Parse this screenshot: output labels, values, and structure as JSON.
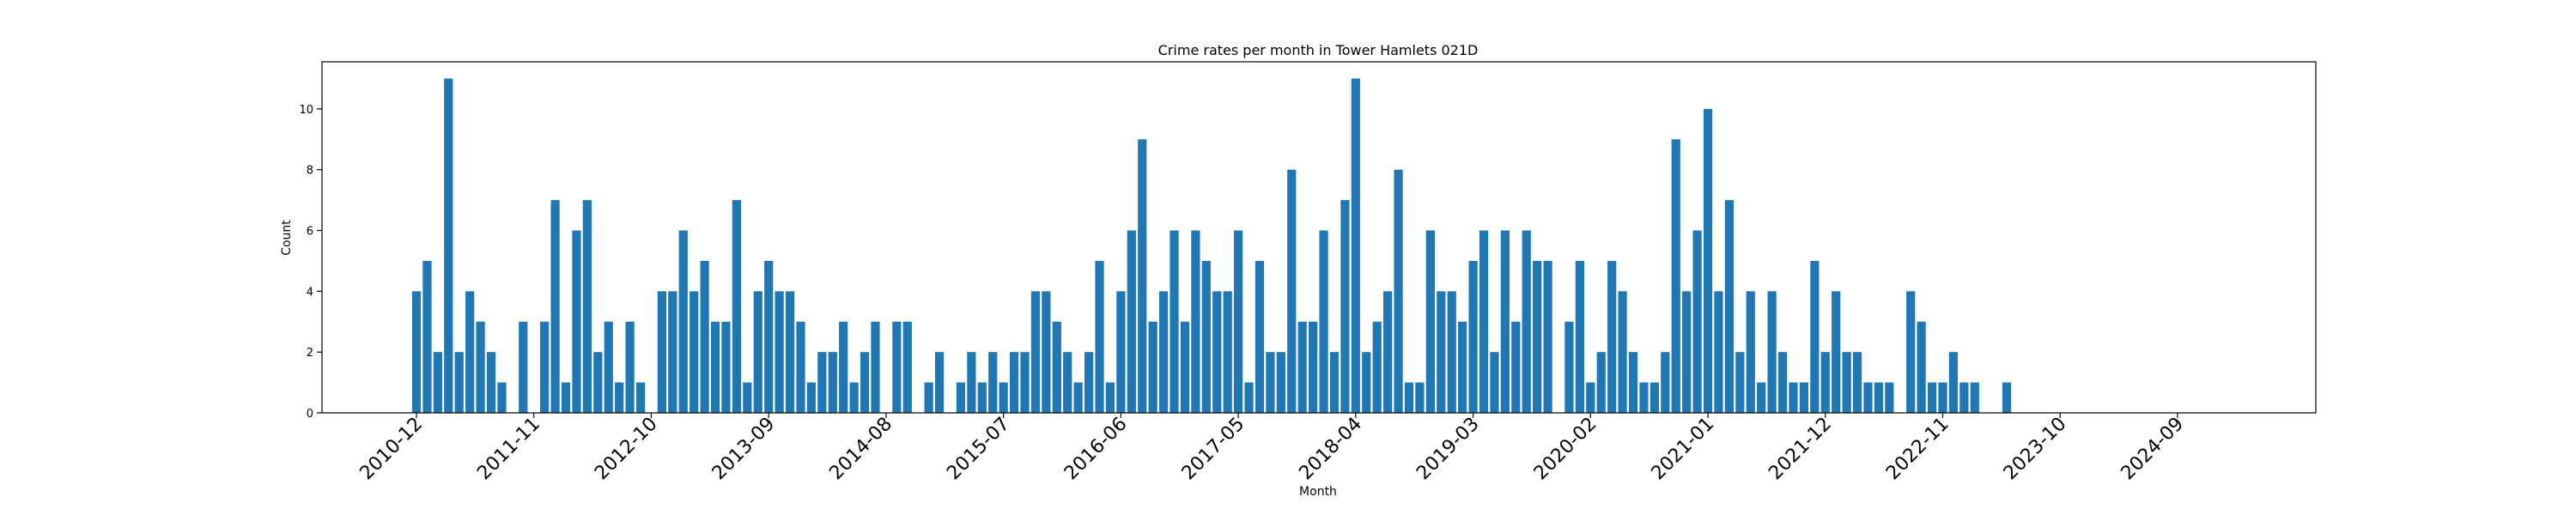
{
  "chart_data": {
    "type": "bar",
    "title": "Crime rates per month in Tower Hamlets 021D",
    "xlabel": "Month",
    "ylabel": "Count",
    "start_month": "2010-12",
    "values": [
      4,
      5,
      2,
      11,
      2,
      4,
      3,
      2,
      1,
      0,
      3,
      0,
      3,
      7,
      1,
      6,
      7,
      2,
      3,
      1,
      3,
      1,
      0,
      4,
      4,
      6,
      4,
      5,
      3,
      3,
      7,
      1,
      4,
      5,
      4,
      4,
      3,
      1,
      2,
      2,
      3,
      1,
      2,
      3,
      0,
      3,
      3,
      0,
      1,
      2,
      0,
      1,
      2,
      1,
      2,
      1,
      2,
      2,
      4,
      4,
      3,
      2,
      1,
      2,
      5,
      1,
      4,
      6,
      9,
      3,
      4,
      6,
      3,
      6,
      5,
      4,
      4,
      6,
      1,
      5,
      2,
      2,
      8,
      3,
      3,
      6,
      2,
      7,
      11,
      2,
      3,
      4,
      8,
      1,
      1,
      6,
      4,
      4,
      3,
      5,
      6,
      2,
      6,
      3,
      6,
      5,
      5,
      0,
      3,
      5,
      1,
      2,
      5,
      4,
      2,
      1,
      1,
      2,
      9,
      4,
      6,
      10,
      4,
      7,
      2,
      4,
      1,
      4,
      2,
      1,
      1,
      5,
      2,
      4,
      2,
      2,
      1,
      1,
      1,
      0,
      4,
      3,
      1,
      1,
      2,
      1,
      1,
      0,
      0,
      1
    ],
    "xtick_labels": [
      "2010-12",
      "2011-11",
      "2012-10",
      "2013-09",
      "2014-08",
      "2015-07",
      "2016-06",
      "2017-05",
      "2018-04",
      "2019-03",
      "2020-02",
      "2021-01",
      "2021-12",
      "2022-11",
      "2023-10",
      "2024-09"
    ],
    "yticks": [
      0,
      2,
      4,
      6,
      8,
      10
    ],
    "ylim": [
      0,
      11.55
    ],
    "grid": false,
    "bar_color": "#1f77b4"
  }
}
